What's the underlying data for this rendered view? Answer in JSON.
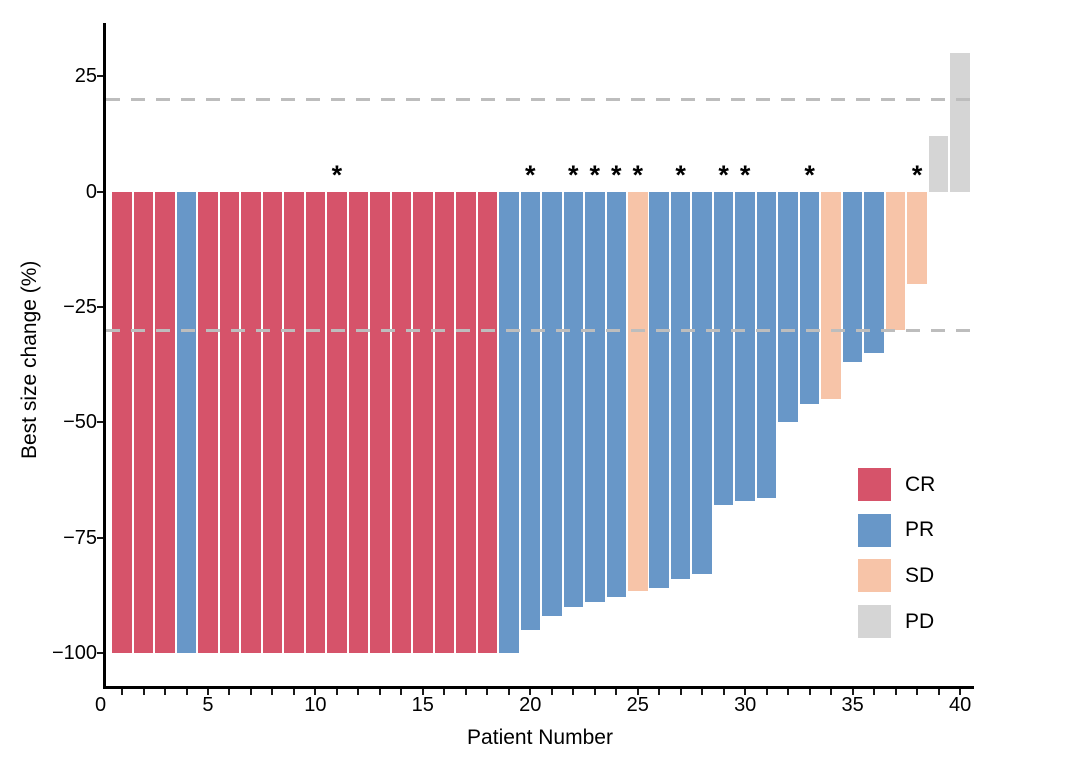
{
  "chart_data": {
    "type": "bar",
    "variant": "waterfall",
    "title": "",
    "xlabel": "Patient Number",
    "ylabel": "Best size change (%)",
    "x_axis": {
      "range": [
        0,
        41
      ],
      "labeled_ticks": [
        0,
        5,
        10,
        15,
        20,
        25,
        30,
        35,
        40
      ],
      "minor_tick_step": 1
    },
    "y_axis": {
      "range": [
        -107,
        37
      ],
      "ticks": [
        25,
        0,
        -25,
        -50,
        -75,
        -100
      ]
    },
    "grid": false,
    "reference_lines": [
      20,
      -30
    ],
    "reference_line_color": "#BDBDBD",
    "axis_color": "#000000",
    "star_symbol": "*",
    "legend_position": "inside-right-bottom",
    "legend": [
      {
        "label": "CR",
        "color": "#D6536A"
      },
      {
        "label": "PR",
        "color": "#6897C8"
      },
      {
        "label": "SD",
        "color": "#F7C4A8"
      },
      {
        "label": "PD",
        "color": "#D5D5D5"
      }
    ],
    "patients": [
      {
        "n": 1,
        "response": "CR",
        "value": -100,
        "star": false
      },
      {
        "n": 2,
        "response": "CR",
        "value": -100,
        "star": false
      },
      {
        "n": 3,
        "response": "CR",
        "value": -100,
        "star": false
      },
      {
        "n": 4,
        "response": "PR",
        "value": -100,
        "star": false
      },
      {
        "n": 5,
        "response": "CR",
        "value": -100,
        "star": false
      },
      {
        "n": 6,
        "response": "CR",
        "value": -100,
        "star": false
      },
      {
        "n": 7,
        "response": "CR",
        "value": -100,
        "star": false
      },
      {
        "n": 8,
        "response": "CR",
        "value": -100,
        "star": false
      },
      {
        "n": 9,
        "response": "CR",
        "value": -100,
        "star": false
      },
      {
        "n": 10,
        "response": "CR",
        "value": -100,
        "star": false
      },
      {
        "n": 11,
        "response": "CR",
        "value": -100,
        "star": true
      },
      {
        "n": 12,
        "response": "CR",
        "value": -100,
        "star": false
      },
      {
        "n": 13,
        "response": "CR",
        "value": -100,
        "star": false
      },
      {
        "n": 14,
        "response": "CR",
        "value": -100,
        "star": false
      },
      {
        "n": 15,
        "response": "CR",
        "value": -100,
        "star": false
      },
      {
        "n": 16,
        "response": "CR",
        "value": -100,
        "star": false
      },
      {
        "n": 17,
        "response": "CR",
        "value": -100,
        "star": false
      },
      {
        "n": 18,
        "response": "CR",
        "value": -100,
        "star": false
      },
      {
        "n": 19,
        "response": "PR",
        "value": -100,
        "star": false
      },
      {
        "n": 20,
        "response": "PR",
        "value": -95,
        "star": true
      },
      {
        "n": 21,
        "response": "PR",
        "value": -92,
        "star": false
      },
      {
        "n": 22,
        "response": "PR",
        "value": -90,
        "star": true
      },
      {
        "n": 23,
        "response": "PR",
        "value": -89,
        "star": true
      },
      {
        "n": 24,
        "response": "PR",
        "value": -88,
        "star": true
      },
      {
        "n": 25,
        "response": "SD",
        "value": -86.5,
        "star": true
      },
      {
        "n": 26,
        "response": "PR",
        "value": -86,
        "star": false
      },
      {
        "n": 27,
        "response": "PR",
        "value": -84,
        "star": true
      },
      {
        "n": 28,
        "response": "PR",
        "value": -83,
        "star": false
      },
      {
        "n": 29,
        "response": "PR",
        "value": -68,
        "star": true
      },
      {
        "n": 30,
        "response": "PR",
        "value": -67,
        "star": true
      },
      {
        "n": 31,
        "response": "PR",
        "value": -66.5,
        "star": false
      },
      {
        "n": 32,
        "response": "PR",
        "value": -50,
        "star": false
      },
      {
        "n": 33,
        "response": "PR",
        "value": -46,
        "star": true
      },
      {
        "n": 34,
        "response": "SD",
        "value": -45,
        "star": false
      },
      {
        "n": 35,
        "response": "PR",
        "value": -37,
        "star": false
      },
      {
        "n": 36,
        "response": "PR",
        "value": -35,
        "star": false
      },
      {
        "n": 37,
        "response": "SD",
        "value": -30,
        "star": false
      },
      {
        "n": 38,
        "response": "SD",
        "value": -20,
        "star": true
      },
      {
        "n": 39,
        "response": "PD",
        "value": 12,
        "star": false
      },
      {
        "n": 40,
        "response": "PD",
        "value": 30,
        "star": false
      }
    ]
  }
}
